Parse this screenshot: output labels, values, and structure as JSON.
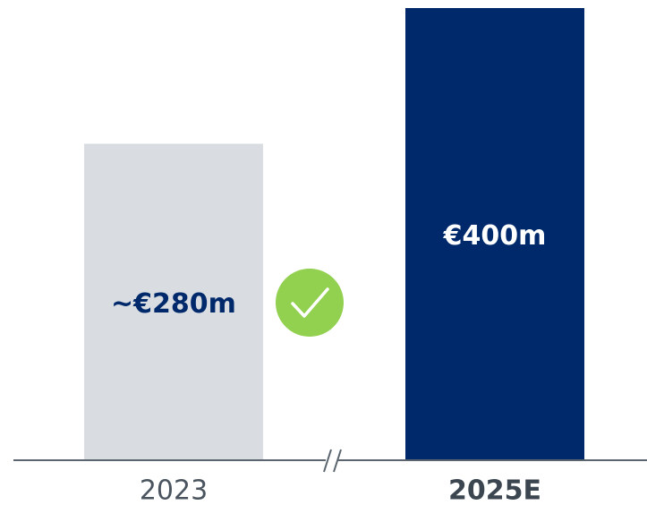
{
  "chart_data": {
    "type": "bar",
    "categories": [
      "2023",
      "2025E"
    ],
    "values": [
      280,
      400
    ],
    "value_labels": [
      "~€280m",
      "€400m"
    ],
    "colors": [
      "#d9dde1",
      "#00296b"
    ],
    "label_colors": [
      "#00296b",
      "#ffffff"
    ]
  }
}
